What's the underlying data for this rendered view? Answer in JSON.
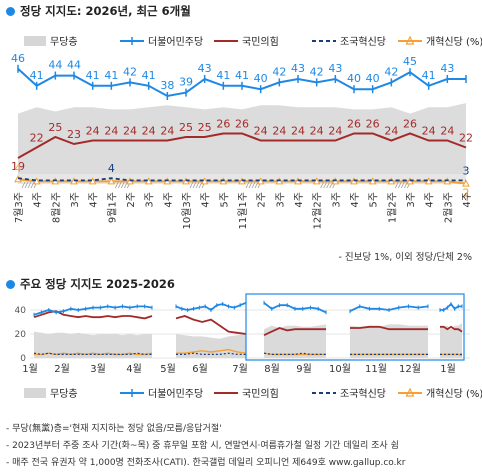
{
  "chart1": {
    "title": "정당 지지도: 2026년, 최근 6개월",
    "note": "- 진보당 1%, 이외 정당/단체 2%"
  },
  "chart2": {
    "title": "주요 정당 지지도 2025-2026",
    "footnotes": [
      "- 무당(無黨)층='현재 지지하는 정당 없음/모름/응답거절'",
      "- 2023년부터 주중 조사 기간(화~목) 중 휴무일 포함 시, 연말연시·여름휴가철 일정 기간 데일리 조사 쉼",
      "- 매주 전국 유권자 약 1,000명 전화조사(CATI). 한국갤럽 데일리 오피니언 제649호 www.gallup.co.kr"
    ]
  },
  "legend": [
    {
      "key": "none",
      "label": "무당층",
      "color": "#d6d6d6"
    },
    {
      "key": "dem",
      "label": "더불어민주당",
      "color": "#1e88e5"
    },
    {
      "key": "ppp",
      "label": "국민의힘",
      "color": "#a32a2a"
    },
    {
      "key": "rk",
      "label": "조국혁신당",
      "color": "#1a3d7c"
    },
    {
      "key": "ref",
      "label": "개혁신당 (%)",
      "color": "#f5a035"
    }
  ],
  "chart_data": [
    {
      "type": "line",
      "title": "정당 지지도: 2026년, 최근 6개월",
      "categories": [
        "7월3주",
        "4주",
        "8월2주",
        "3주",
        "4주",
        "9월1주",
        "2주",
        "3주",
        "4주",
        "10월3주",
        "4주",
        "5주",
        "11월1주",
        "2주",
        "3주",
        "4주",
        "12월2주",
        "3주",
        "4주",
        "5주",
        "1월2주",
        "3주",
        "4주",
        "2월3주",
        "4주"
      ],
      "series": [
        {
          "name": "더불어민주당",
          "values": [
            46,
            41,
            44,
            44,
            41,
            41,
            42,
            41,
            38,
            39,
            43,
            41,
            41,
            40,
            42,
            43,
            42,
            43,
            40,
            40,
            42,
            45,
            41,
            43,
            43
          ],
          "labels": [
            46,
            41,
            44,
            44,
            41,
            41,
            42,
            41,
            38,
            39,
            43,
            41,
            41,
            40,
            42,
            43,
            42,
            43,
            40,
            40,
            42,
            45,
            41,
            43,
            null
          ]
        },
        {
          "name": "국민의힘",
          "values": [
            19,
            22,
            25,
            23,
            24,
            24,
            24,
            24,
            24,
            25,
            25,
            26,
            26,
            24,
            24,
            24,
            24,
            24,
            26,
            26,
            24,
            26,
            24,
            24,
            22
          ],
          "labels": [
            19,
            22,
            25,
            23,
            24,
            24,
            24,
            24,
            24,
            25,
            25,
            26,
            26,
            24,
            24,
            24,
            24,
            24,
            26,
            26,
            24,
            26,
            24,
            24,
            22
          ]
        },
        {
          "name": "조국혁신당",
          "values": [
            4,
            3,
            3,
            3,
            3,
            4,
            3,
            3,
            3,
            3,
            3,
            3,
            3,
            3,
            3,
            3,
            3,
            3,
            3,
            3,
            3,
            3,
            3,
            3,
            3
          ],
          "labels": [
            4,
            null,
            null,
            null,
            null,
            4,
            null,
            null,
            null,
            null,
            null,
            null,
            null,
            null,
            null,
            null,
            null,
            null,
            null,
            null,
            null,
            null,
            null,
            null,
            3
          ]
        },
        {
          "name": "개혁신당",
          "values": [
            4,
            3,
            3,
            3,
            3,
            3,
            3,
            3,
            3,
            3,
            3,
            3,
            3,
            3,
            3,
            3,
            3,
            3,
            3,
            3,
            3,
            3,
            3,
            3,
            2
          ],
          "labels": [
            null,
            null,
            null,
            null,
            null,
            null,
            null,
            null,
            null,
            null,
            null,
            null,
            null,
            null,
            null,
            null,
            null,
            null,
            null,
            null,
            null,
            null,
            null,
            null,
            2
          ]
        },
        {
          "name": "무당층",
          "values": [
            24,
            27,
            25,
            27,
            27,
            26,
            26,
            27,
            28,
            27,
            26,
            27,
            26,
            28,
            28,
            27,
            27,
            27,
            26,
            26,
            27,
            24,
            27,
            27,
            29
          ]
        }
      ]
    },
    {
      "type": "line",
      "title": "주요 정당 지지도 2025-2026",
      "xtick_labels": [
        "1월",
        "2월",
        "3월",
        "4월",
        "5월",
        "6월",
        "7월",
        "8월",
        "9월",
        "10월",
        "11월",
        "12월",
        "1월"
      ],
      "ylim": [
        0,
        50
      ],
      "yticks": [
        0,
        20,
        40
      ],
      "highlight": "최근 6개월",
      "series": [
        {
          "name": "더불어민주당",
          "segments": [
            [
              36,
              38,
              40,
              38,
              39,
              41,
              40,
              41,
              42,
              42,
              43,
              42,
              43,
              42,
              43,
              43,
              42
            ],
            [
              43,
              41,
              40,
              41,
              42,
              43,
              40,
              44,
              45,
              43,
              42,
              44,
              46
            ],
            [
              46,
              41,
              44,
              44,
              41,
              41,
              42,
              41,
              38
            ],
            [
              39,
              43,
              41,
              41,
              40,
              42,
              43,
              42,
              43
            ],
            [
              40,
              40,
              42,
              45,
              41,
              43,
              43
            ]
          ]
        },
        {
          "name": "국민의힘",
          "segments": [
            [
              34,
              36,
              38,
              39,
              36,
              35,
              34,
              35,
              34,
              34,
              35,
              34,
              35,
              35,
              34,
              33,
              35
            ],
            [
              33,
              35,
              32,
              30,
              32,
              27,
              22,
              21,
              20
            ],
            [
              19,
              22,
              25,
              23,
              24,
              24,
              24,
              24,
              24
            ],
            [
              25,
              25,
              26,
              26,
              24,
              24,
              24,
              24,
              24
            ],
            [
              26,
              26,
              24,
              26,
              24,
              24,
              22
            ]
          ]
        },
        {
          "name": "조국혁신당",
          "segments": [
            [
              4,
              3,
              4,
              3,
              3,
              3,
              3,
              3,
              3,
              3,
              3,
              3,
              3,
              3,
              4,
              3,
              3
            ],
            [
              3,
              3,
              4,
              3,
              3,
              3,
              4,
              3,
              3
            ],
            [
              4,
              3,
              3,
              3,
              3,
              4,
              3,
              3,
              3
            ],
            [
              3,
              3,
              3,
              3,
              3,
              3,
              3,
              3,
              3
            ],
            [
              3,
              3,
              3,
              3,
              3,
              3,
              3
            ]
          ]
        },
        {
          "name": "개혁신당",
          "segments": [
            [
              3,
              3,
              4,
              3,
              4,
              3,
              4,
              3,
              4,
              3,
              4,
              3,
              3,
              4,
              3,
              3,
              4
            ],
            [
              4,
              4,
              5,
              6,
              5,
              6,
              7,
              5,
              4
            ],
            [
              4,
              3,
              3,
              3,
              3,
              3,
              3,
              3,
              3
            ],
            [
              3,
              3,
              3,
              3,
              3,
              3,
              3,
              3,
              3
            ],
            [
              3,
              3,
              3,
              3,
              3,
              3,
              2
            ]
          ]
        },
        {
          "name": "무당층",
          "segments": [
            [
              22,
              21,
              20,
              21,
              21,
              20,
              21,
              20,
              19,
              20,
              20,
              20,
              19,
              20,
              19,
              20,
              20
            ],
            [
              20,
              19,
              18,
              18,
              17,
              16,
              18,
              19,
              20
            ],
            [
              24,
              27,
              25,
              27,
              27,
              26,
              26,
              27,
              28
            ],
            [
              27,
              26,
              27,
              26,
              28,
              28,
              27,
              27,
              27
            ],
            [
              26,
              26,
              27,
              24,
              27,
              27,
              29
            ]
          ]
        }
      ]
    }
  ]
}
